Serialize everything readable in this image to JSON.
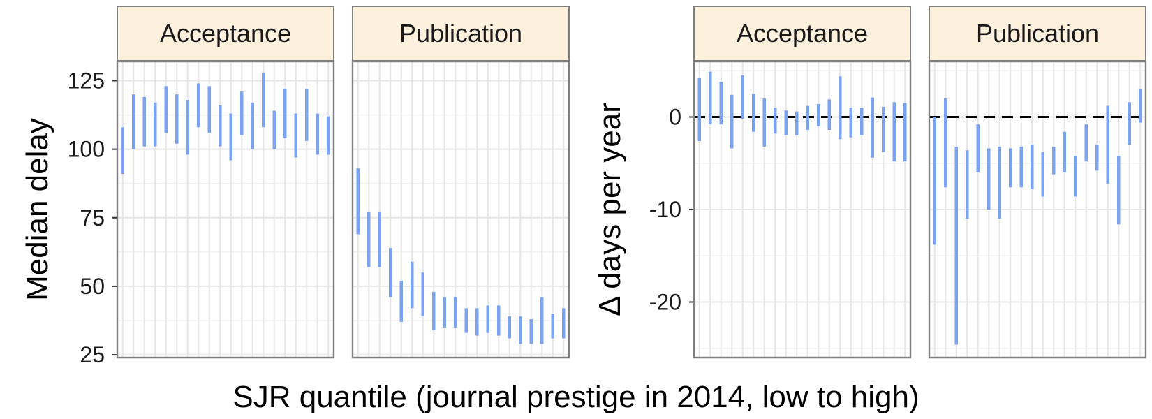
{
  "x_axis_title": "SJR quantile (journal prestige in 2014, low to high)",
  "colors": {
    "bar": "#7BA3F0",
    "strip_fill": "#FDF0DC",
    "border": "#7f7f7f",
    "grid": "#e6e6e6"
  },
  "chart_data": [
    {
      "type": "errorbar",
      "ylabel": "Median delay",
      "ylim": [
        24,
        132
      ],
      "yticks": [
        "25",
        "50",
        "75",
        "100",
        "125"
      ],
      "ytick_values": [
        25,
        50,
        75,
        100,
        125
      ],
      "x_categories": 20,
      "grid": true,
      "panels": [
        {
          "strip": "Acceptance",
          "x": [
            1,
            2,
            3,
            4,
            5,
            6,
            7,
            8,
            9,
            10,
            11,
            12,
            13,
            14,
            15,
            16,
            17,
            18,
            19,
            20
          ],
          "low": [
            91,
            100,
            101,
            101,
            106,
            102,
            98,
            108,
            106,
            101,
            96,
            105,
            100,
            108,
            100,
            104,
            97,
            103,
            98,
            98
          ],
          "high": [
            108,
            120,
            119,
            117,
            123,
            120,
            118,
            124,
            123,
            116,
            113,
            121,
            117,
            128,
            114,
            122,
            113,
            122,
            113,
            112
          ]
        },
        {
          "strip": "Publication",
          "x": [
            1,
            2,
            3,
            4,
            5,
            6,
            7,
            8,
            9,
            10,
            11,
            12,
            13,
            14,
            15,
            16,
            17,
            18,
            19,
            20
          ],
          "low": [
            69,
            57,
            57,
            46,
            37,
            42,
            39,
            34,
            35,
            35,
            33,
            32,
            33,
            32,
            31,
            29,
            29,
            29,
            31,
            31
          ],
          "high": [
            93,
            77,
            77,
            64,
            52,
            59,
            55,
            48,
            46,
            46,
            42,
            42,
            43,
            43,
            39,
            39,
            38,
            46,
            40,
            42
          ]
        }
      ]
    },
    {
      "type": "errorbar",
      "ylabel": "Δ days per year",
      "ylim": [
        -26,
        6
      ],
      "yticks": [
        "-20",
        "-10",
        "0"
      ],
      "ytick_values": [
        -20,
        -10,
        0
      ],
      "reference_line": 0,
      "x_categories": 20,
      "grid": true,
      "panels": [
        {
          "strip": "Acceptance",
          "x": [
            1,
            2,
            3,
            4,
            5,
            6,
            7,
            8,
            9,
            10,
            11,
            12,
            13,
            14,
            15,
            16,
            17,
            18,
            19,
            20
          ],
          "low": [
            -2.6,
            -0.8,
            -0.8,
            -3.4,
            -0.2,
            -1.6,
            -3.2,
            -1.8,
            -2.0,
            -2.0,
            -1.4,
            -1.0,
            -1.4,
            -2.4,
            -2.2,
            -2.0,
            -4.4,
            -3.8,
            -4.8,
            -4.8
          ],
          "high": [
            4.2,
            4.9,
            3.8,
            2.4,
            4.5,
            2.5,
            2.0,
            1.0,
            0.7,
            0.6,
            1.2,
            1.4,
            1.9,
            4.4,
            1.0,
            1.0,
            2.1,
            1.1,
            1.6,
            1.5
          ]
        },
        {
          "strip": "Publication",
          "x": [
            1,
            2,
            3,
            4,
            5,
            6,
            7,
            8,
            9,
            10,
            11,
            12,
            13,
            14,
            15,
            16,
            17,
            18,
            19,
            20
          ],
          "low": [
            -13.8,
            -7.6,
            -24.6,
            -11.0,
            -6.0,
            -10.0,
            -11.0,
            -7.6,
            -7.6,
            -7.8,
            -8.6,
            -6.2,
            -6.0,
            -8.6,
            -4.8,
            -5.8,
            -7.2,
            -11.6,
            -3.0,
            -0.6
          ],
          "high": [
            0,
            2.0,
            -3.2,
            -3.6,
            -0.8,
            -3.4,
            -3.2,
            -3.4,
            -3.2,
            -3.0,
            -3.8,
            -3.2,
            -1.6,
            -4.2,
            -0.8,
            -3.0,
            1.2,
            -4.2,
            1.6,
            3.0
          ]
        }
      ]
    }
  ]
}
